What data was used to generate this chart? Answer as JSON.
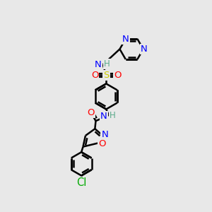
{
  "background_color": "#e8e8e8",
  "atom_colors": {
    "C": "#000000",
    "N": "#0000ff",
    "O": "#ff0000",
    "S": "#cccc00",
    "Cl": "#00aa00",
    "H": "#5aaa8a"
  },
  "bond_color": "#000000",
  "bond_width": 1.8,
  "font_size_atom": 9.5,
  "bg": "#e8e8e8"
}
